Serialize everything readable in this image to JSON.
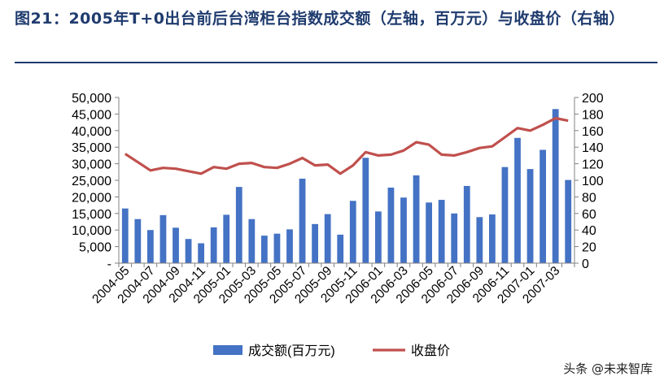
{
  "title": "图21：2005年T+0出台前后台湾柜台指数成交额（左轴，百万元）与收盘价（右轴）",
  "watermark": "头条 @未来智库",
  "colors": {
    "bar": "#4472c4",
    "line": "#c0504d",
    "title": "#1f3b6e"
  },
  "chart_data": {
    "type": "bar+line",
    "categories": [
      "2004-05",
      "2004-06",
      "2004-07",
      "2004-08",
      "2004-09",
      "2004-10",
      "2004-11",
      "2004-12",
      "2005-01",
      "2005-02",
      "2005-03",
      "2005-04",
      "2005-05",
      "2005-06",
      "2005-07",
      "2005-08",
      "2005-09",
      "2005-10",
      "2005-11",
      "2005-12",
      "2006-01",
      "2006-02",
      "2006-03",
      "2006-04",
      "2006-05",
      "2006-06",
      "2006-07",
      "2006-08",
      "2006-09",
      "2006-10",
      "2006-11",
      "2006-12",
      "2007-01",
      "2007-02",
      "2007-03",
      "2007-04"
    ],
    "tick_labels": [
      "2004-05",
      "2004-07",
      "2004-09",
      "2004-11",
      "2005-01",
      "2005-03",
      "2005-05",
      "2005-07",
      "2005-09",
      "2005-11",
      "2006-01",
      "2006-03",
      "2006-05",
      "2006-07",
      "2006-09",
      "2006-11",
      "2007-01",
      "2007-03"
    ],
    "series": [
      {
        "name": "成交额(百万元)",
        "type": "bar",
        "axis": "left",
        "values": [
          16500,
          13300,
          10000,
          14500,
          10700,
          7300,
          6000,
          10800,
          14600,
          23000,
          13300,
          8300,
          8900,
          10200,
          25500,
          11800,
          14800,
          8600,
          18800,
          31800,
          15600,
          22800,
          19800,
          26500,
          18300,
          19100,
          15000,
          23300,
          13900,
          14700,
          29000,
          37800,
          28400,
          34200,
          46500,
          25100
        ]
      },
      {
        "name": "收盘价",
        "type": "line",
        "axis": "right",
        "values": [
          132,
          122,
          112,
          115,
          114,
          111,
          108,
          116,
          114,
          120,
          121,
          116,
          115,
          120,
          127,
          118,
          119,
          108,
          118,
          134,
          130,
          131,
          136,
          146,
          143,
          131,
          130,
          134,
          139,
          141,
          152,
          163,
          160,
          167,
          175,
          172
        ]
      }
    ],
    "left_axis": {
      "min": 0,
      "max": 50000,
      "step": 5000,
      "tick_labels": [
        "-",
        "5,000",
        "10,000",
        "15,000",
        "20,000",
        "25,000",
        "30,000",
        "35,000",
        "40,000",
        "45,000",
        "50,000"
      ]
    },
    "right_axis": {
      "min": 0,
      "max": 200,
      "step": 20,
      "tick_labels": [
        "0",
        "20",
        "40",
        "60",
        "80",
        "100",
        "120",
        "140",
        "160",
        "180",
        "200"
      ]
    },
    "legend_position": "bottom",
    "grid": false
  }
}
